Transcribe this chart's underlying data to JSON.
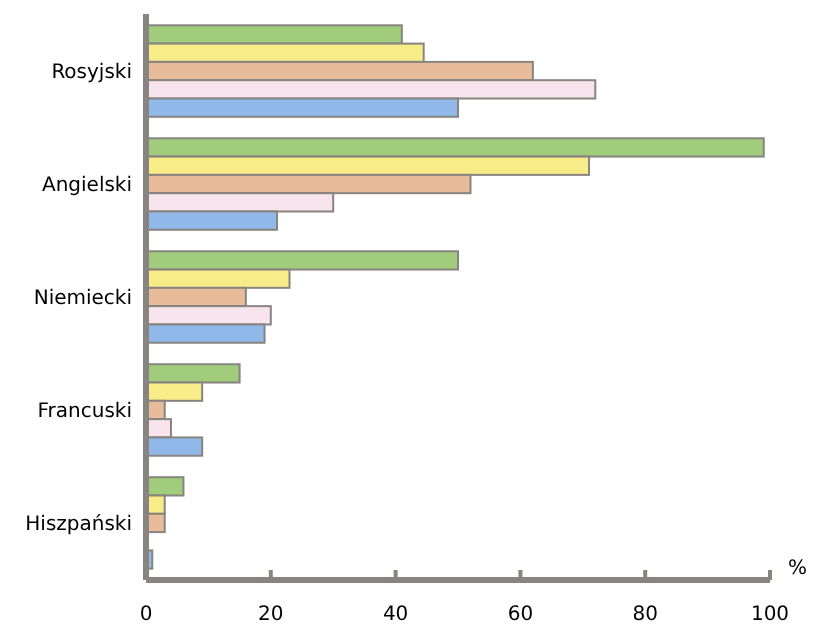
{
  "chart_data": {
    "type": "bar",
    "orientation": "horizontal",
    "categories": [
      "Rosyjski",
      "Angielski",
      "Niemiecki",
      "Francuski",
      "Hiszpański"
    ],
    "series": [
      {
        "color": "#a0cc7c",
        "values": [
          41,
          99,
          50,
          15,
          6
        ]
      },
      {
        "color": "#f8ec88",
        "values": [
          44.5,
          71,
          23,
          9,
          3
        ]
      },
      {
        "color": "#e8bc98",
        "values": [
          62,
          52,
          16,
          3,
          3
        ]
      },
      {
        "color": "#f8e4ec",
        "values": [
          72,
          30,
          20,
          4,
          0
        ]
      },
      {
        "color": "#90b8e8",
        "values": [
          50,
          21,
          19,
          9,
          1
        ]
      }
    ],
    "xlabel": "%",
    "xlim": [
      0,
      100
    ],
    "xticks": [
      0,
      20,
      40,
      60,
      80,
      100
    ],
    "grid": false
  }
}
